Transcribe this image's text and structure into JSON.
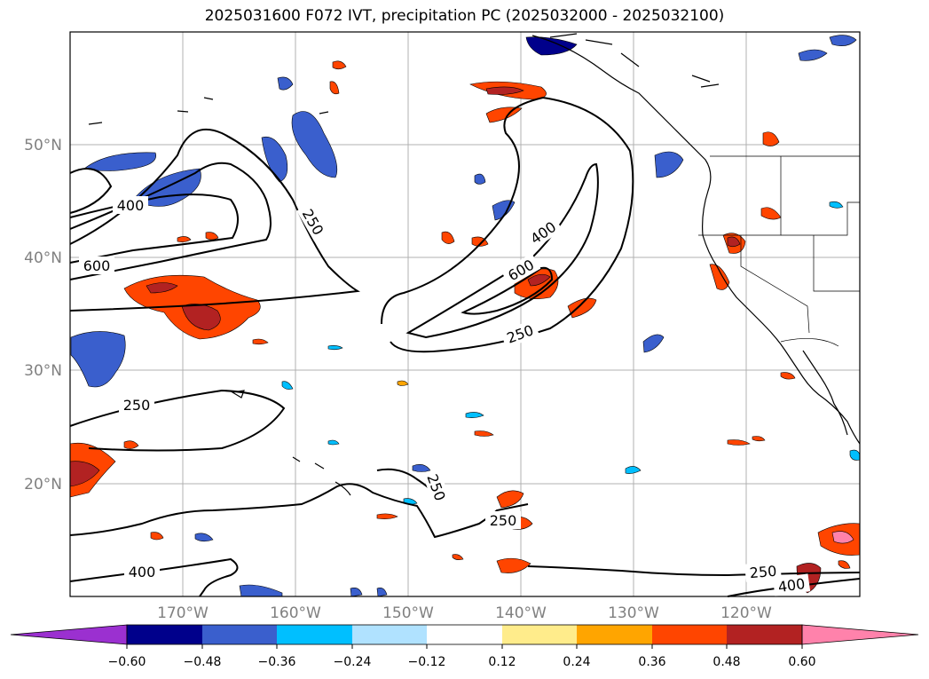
{
  "title": "2025031600 F072 IVT, precipitation PC (2025032000 - 2025032100)",
  "map": {
    "lat_labels": [
      "50°N",
      "40°N",
      "30°N",
      "20°N"
    ],
    "lon_labels": [
      "170°W",
      "160°W",
      "150°W",
      "140°W",
      "130°W",
      "120°W"
    ],
    "contour_labels": [
      "400",
      "600",
      "250",
      "400",
      "600",
      "250",
      "250",
      "250",
      "250",
      "400",
      "250",
      "400"
    ]
  },
  "colorbar": {
    "ticks": [
      "−0.60",
      "−0.48",
      "−0.36",
      "−0.24",
      "−0.12",
      "0.12",
      "0.24",
      "0.36",
      "0.48",
      "0.60"
    ],
    "colors": [
      "#9b30d0",
      "#00008b",
      "#3a5fcd",
      "#00bfff",
      "#b0e2ff",
      "#ffffff",
      "#ffec8b",
      "#ffa500",
      "#ff4500",
      "#b22222",
      "#ff82ab"
    ]
  }
}
